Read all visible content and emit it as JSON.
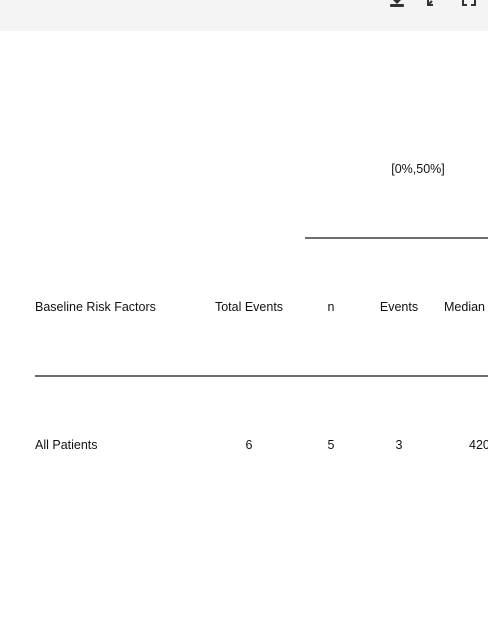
{
  "toolbar": {
    "icons": [
      "download-icon",
      "collapse-icon",
      "expand-icon"
    ]
  },
  "table": {
    "spanner_header": "[0%,50%]",
    "columns": {
      "risk_factor": "Baseline Risk Factors",
      "total_events": "Total Events",
      "n": "n",
      "events": "Events",
      "median": "Median ("
    },
    "rows": [
      {
        "label": "All Patients",
        "total_events": "6",
        "n": "5",
        "events": "3",
        "median": "420"
      }
    ]
  }
}
